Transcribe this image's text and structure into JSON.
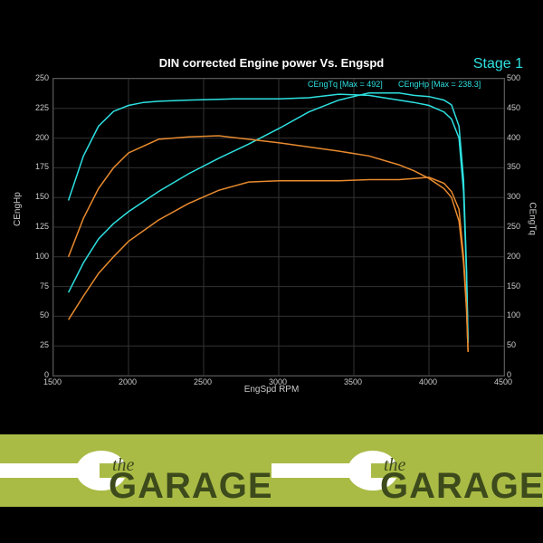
{
  "chart": {
    "title": "DIN corrected Engine power Vs. Engspd",
    "stage_label": "Stage 1",
    "x_axis": {
      "label": "EngSpd RPM",
      "min": 1500,
      "max": 4500,
      "ticks": [
        1500,
        2000,
        2500,
        3000,
        3500,
        4000,
        4500
      ]
    },
    "y_left": {
      "label": "CEngHp",
      "min": 0,
      "max": 250,
      "ticks": [
        0,
        25,
        50,
        75,
        100,
        125,
        150,
        175,
        200,
        225,
        250
      ]
    },
    "y_right": {
      "label": "CEngTq",
      "min": 0,
      "max": 500,
      "ticks": [
        0,
        50,
        100,
        150,
        200,
        250,
        300,
        350,
        400,
        450,
        500
      ]
    },
    "annotations": {
      "tq": "CEngTq [Max = 492]",
      "hp": "CEngHp [Max = 238.3]"
    },
    "colors": {
      "bg": "#000000",
      "grid": "#333333",
      "text": "#cccccc",
      "title": "#ffffff",
      "cyan": "#2ee0e0",
      "orange": "#e88a2e"
    },
    "series": {
      "tq_tuned": {
        "color": "#2ee0e0",
        "axis": "right",
        "points": [
          [
            1600,
            295
          ],
          [
            1700,
            370
          ],
          [
            1800,
            420
          ],
          [
            1900,
            445
          ],
          [
            2000,
            455
          ],
          [
            2100,
            460
          ],
          [
            2200,
            462
          ],
          [
            2400,
            464
          ],
          [
            2700,
            466
          ],
          [
            3000,
            466
          ],
          [
            3200,
            468
          ],
          [
            3400,
            474
          ],
          [
            3600,
            472
          ],
          [
            3800,
            464
          ],
          [
            3900,
            460
          ],
          [
            4000,
            455
          ],
          [
            4100,
            444
          ],
          [
            4150,
            432
          ],
          [
            4200,
            400
          ],
          [
            4230,
            310
          ],
          [
            4250,
            170
          ],
          [
            4260,
            55
          ]
        ]
      },
      "hp_tuned": {
        "color": "#2ee0e0",
        "axis": "left",
        "points": [
          [
            1600,
            70
          ],
          [
            1700,
            95
          ],
          [
            1800,
            115
          ],
          [
            1900,
            128
          ],
          [
            2000,
            138
          ],
          [
            2200,
            155
          ],
          [
            2400,
            170
          ],
          [
            2600,
            183
          ],
          [
            2800,
            195
          ],
          [
            3000,
            208
          ],
          [
            3200,
            222
          ],
          [
            3400,
            232
          ],
          [
            3600,
            238
          ],
          [
            3800,
            238
          ],
          [
            3900,
            236
          ],
          [
            4000,
            235
          ],
          [
            4100,
            232
          ],
          [
            4150,
            228
          ],
          [
            4200,
            210
          ],
          [
            4230,
            165
          ],
          [
            4250,
            90
          ],
          [
            4260,
            30
          ]
        ]
      },
      "tq_stock": {
        "color": "#e88a2e",
        "axis": "right",
        "points": [
          [
            1600,
            200
          ],
          [
            1700,
            265
          ],
          [
            1800,
            315
          ],
          [
            1900,
            350
          ],
          [
            2000,
            375
          ],
          [
            2200,
            398
          ],
          [
            2400,
            402
          ],
          [
            2600,
            404
          ],
          [
            2800,
            398
          ],
          [
            3000,
            392
          ],
          [
            3200,
            385
          ],
          [
            3400,
            378
          ],
          [
            3600,
            370
          ],
          [
            3800,
            355
          ],
          [
            3900,
            345
          ],
          [
            4000,
            332
          ],
          [
            4100,
            315
          ],
          [
            4150,
            300
          ],
          [
            4200,
            260
          ],
          [
            4230,
            190
          ],
          [
            4250,
            110
          ],
          [
            4260,
            40
          ]
        ]
      },
      "hp_stock": {
        "color": "#e88a2e",
        "axis": "left",
        "points": [
          [
            1600,
            47
          ],
          [
            1700,
            67
          ],
          [
            1800,
            86
          ],
          [
            1900,
            100
          ],
          [
            2000,
            113
          ],
          [
            2200,
            131
          ],
          [
            2400,
            145
          ],
          [
            2600,
            156
          ],
          [
            2800,
            163
          ],
          [
            3000,
            164
          ],
          [
            3200,
            164
          ],
          [
            3400,
            164
          ],
          [
            3600,
            165
          ],
          [
            3800,
            165
          ],
          [
            3900,
            166
          ],
          [
            4000,
            167
          ],
          [
            4100,
            162
          ],
          [
            4150,
            155
          ],
          [
            4200,
            140
          ],
          [
            4230,
            100
          ],
          [
            4250,
            60
          ],
          [
            4260,
            20
          ]
        ]
      }
    }
  },
  "logo": {
    "the": "the",
    "garage": "GARAGE",
    "band_bg": "#a9bb45",
    "text_color": "#3d4a1b",
    "wrench_color": "#ffffff"
  }
}
